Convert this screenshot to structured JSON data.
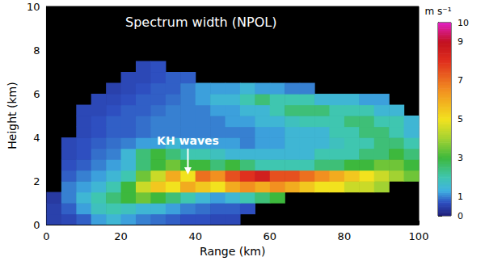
{
  "chart_data": {
    "type": "heatmap",
    "title": "Spectrum width (NPOL)",
    "x_label": "Range (km)",
    "y_label": "Height (km)",
    "xlim": [
      0,
      100
    ],
    "xticks": [
      0,
      20,
      40,
      60,
      80,
      100
    ],
    "ylim": [
      0,
      10
    ],
    "yticks": [
      0,
      2,
      4,
      6,
      8,
      10
    ],
    "x": [
      2,
      6,
      10,
      14,
      18,
      22,
      26,
      30,
      34,
      38,
      42,
      46,
      50,
      54,
      58,
      62,
      66,
      70,
      74,
      78,
      82,
      86,
      90,
      94,
      98
    ],
    "y": [
      0.25,
      0.75,
      1.25,
      1.75,
      2.25,
      2.75,
      3.25,
      3.75,
      4.25,
      4.75,
      5.25,
      5.75,
      6.25,
      6.75,
      7.25
    ],
    "z": [
      [
        0.5,
        0.6,
        0.8,
        1.2,
        1.5,
        1.2,
        1.0,
        0.9,
        0.8,
        0.7,
        0.7,
        0.6,
        0.6,
        null,
        null,
        null,
        null,
        null,
        null,
        null,
        null,
        null,
        null,
        null,
        null
      ],
      [
        0.5,
        0.8,
        1.2,
        1.8,
        2.0,
        1.8,
        1.5,
        1.5,
        1.2,
        1.0,
        0.9,
        0.8,
        0.8,
        0.7,
        null,
        null,
        null,
        null,
        null,
        null,
        null,
        null,
        null,
        null,
        null
      ],
      [
        0.4,
        1.0,
        1.5,
        2.0,
        2.5,
        3.0,
        3.5,
        3.0,
        2.5,
        2.0,
        1.5,
        1.2,
        1.5,
        2.0,
        2.5,
        3.0,
        null,
        null,
        null,
        null,
        null,
        null,
        null,
        null,
        null
      ],
      [
        null,
        1.0,
        1.2,
        1.5,
        2.0,
        3.0,
        4.5,
        5.5,
        5.0,
        6.0,
        5.5,
        5.0,
        6.0,
        6.5,
        6.0,
        6.5,
        6.0,
        5.5,
        5.0,
        5.0,
        4.5,
        4.5,
        4.0,
        null,
        null
      ],
      [
        null,
        0.8,
        1.0,
        1.2,
        1.5,
        2.0,
        3.5,
        4.5,
        6.0,
        5.0,
        7.0,
        6.5,
        7.5,
        8.0,
        8.5,
        7.5,
        7.5,
        7.0,
        6.5,
        6.0,
        5.5,
        5.0,
        4.5,
        4.0,
        3.5
      ],
      [
        null,
        0.7,
        0.8,
        1.0,
        1.2,
        1.5,
        2.5,
        3.0,
        3.5,
        3.0,
        3.0,
        2.5,
        3.0,
        2.5,
        2.0,
        2.0,
        2.0,
        2.0,
        2.5,
        2.5,
        3.0,
        3.0,
        3.5,
        3.5,
        3.0
      ],
      [
        null,
        0.6,
        0.7,
        0.9,
        1.0,
        1.5,
        2.5,
        3.0,
        2.5,
        2.0,
        2.0,
        1.8,
        1.5,
        1.5,
        1.5,
        1.5,
        1.5,
        1.5,
        2.0,
        2.0,
        2.0,
        2.5,
        2.5,
        3.0,
        2.5
      ],
      [
        null,
        0.6,
        0.7,
        0.8,
        0.9,
        1.0,
        1.2,
        1.2,
        1.5,
        1.2,
        1.2,
        1.2,
        1.2,
        1.0,
        1.2,
        1.2,
        1.5,
        1.5,
        1.5,
        1.8,
        2.0,
        2.0,
        2.5,
        2.5,
        2.0
      ],
      [
        null,
        null,
        0.6,
        0.7,
        0.8,
        0.8,
        0.9,
        1.0,
        1.0,
        1.0,
        1.0,
        1.0,
        1.0,
        1.0,
        1.2,
        1.2,
        1.5,
        1.5,
        1.5,
        2.0,
        2.0,
        2.5,
        2.5,
        2.0,
        1.5
      ],
      [
        null,
        null,
        0.6,
        0.7,
        0.8,
        0.8,
        0.9,
        1.0,
        1.0,
        1.0,
        1.0,
        1.0,
        1.2,
        1.2,
        1.5,
        1.5,
        1.8,
        2.0,
        2.0,
        2.0,
        2.5,
        2.5,
        2.0,
        2.0,
        1.5
      ],
      [
        null,
        null,
        0.6,
        0.6,
        0.7,
        0.8,
        0.8,
        0.9,
        1.0,
        1.0,
        1.0,
        1.2,
        1.2,
        1.5,
        1.5,
        2.0,
        2.5,
        2.5,
        2.5,
        2.0,
        2.0,
        2.0,
        1.5,
        1.5,
        null
      ],
      [
        null,
        null,
        null,
        0.6,
        0.6,
        0.7,
        0.8,
        0.8,
        0.9,
        1.0,
        1.2,
        1.5,
        1.5,
        2.0,
        2.5,
        2.0,
        2.0,
        2.0,
        1.5,
        1.5,
        1.5,
        1.2,
        1.2,
        null,
        null
      ],
      [
        null,
        null,
        null,
        null,
        0.5,
        0.6,
        0.7,
        0.8,
        0.8,
        1.0,
        1.2,
        1.2,
        1.2,
        1.5,
        1.2,
        1.2,
        1.0,
        1.0,
        null,
        null,
        null,
        null,
        null,
        null,
        null
      ],
      [
        null,
        null,
        null,
        null,
        null,
        0.6,
        0.6,
        0.7,
        0.8,
        0.8,
        null,
        null,
        null,
        null,
        null,
        null,
        null,
        null,
        null,
        null,
        null,
        null,
        null,
        null,
        null
      ],
      [
        null,
        null,
        null,
        null,
        null,
        null,
        0.6,
        0.7,
        null,
        null,
        null,
        null,
        null,
        null,
        null,
        null,
        null,
        null,
        null,
        null,
        null,
        null,
        null,
        null,
        null
      ]
    ],
    "colorbar_label": "m s⁻¹",
    "colorbar_range": [
      0,
      10
    ],
    "colorbar_ticks": [
      0,
      1,
      3,
      5,
      7,
      9,
      10
    ],
    "annotations": [
      {
        "text": "KH waves",
        "x": 38,
        "y": 3.6,
        "arrow_to": [
          38,
          2.3
        ]
      }
    ]
  }
}
